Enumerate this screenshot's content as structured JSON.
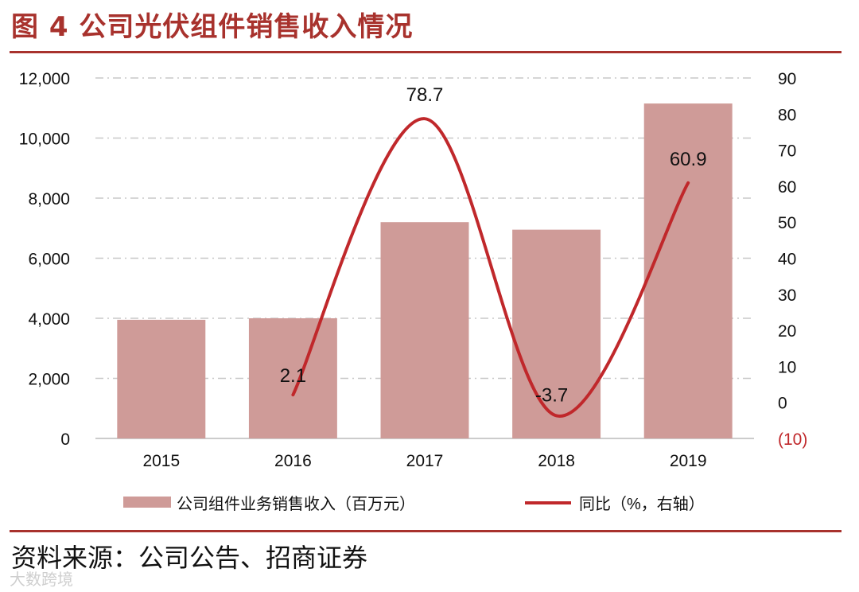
{
  "page": {
    "title": "图 4 公司光伏组件销售收入情况",
    "source": "资料来源：公司公告、招商证券",
    "watermark": "大数跨境"
  },
  "chart_data": {
    "type": "bar",
    "categories": [
      "2015",
      "2016",
      "2017",
      "2018",
      "2019"
    ],
    "series": [
      {
        "name": "公司组件业务销售收入（百万元）",
        "type": "bar",
        "axis": "left",
        "values": [
          3950,
          4000,
          7200,
          6950,
          11150
        ],
        "color": "#cf9b98"
      },
      {
        "name": "同比（%，右轴）",
        "type": "line",
        "axis": "right",
        "values": [
          null,
          2.1,
          78.7,
          -3.7,
          60.9
        ],
        "labels": [
          "",
          "2.1",
          "78.7",
          "-3.7",
          "60.9"
        ],
        "color": "#c0282b"
      }
    ],
    "left_axis": {
      "ylim": [
        0,
        12000
      ],
      "ticks": [
        "0",
        "2,000",
        "4,000",
        "6,000",
        "8,000",
        "10,000",
        "12,000"
      ]
    },
    "right_axis": {
      "ylim": [
        -10,
        90
      ],
      "ticks": [
        "(10)",
        "0",
        "10",
        "20",
        "30",
        "40",
        "50",
        "60",
        "70",
        "80",
        "90"
      ],
      "negative_color": "#c0282b"
    },
    "grid": "horizontal-dashdot",
    "legend_position": "bottom"
  }
}
